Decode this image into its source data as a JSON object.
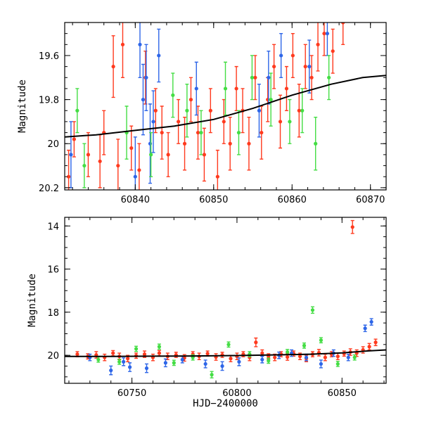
{
  "chart_data": [
    {
      "type": "scatter",
      "xlabel": "",
      "ylabel": "Magnitude",
      "xlim": [
        60831,
        60872
      ],
      "ylim": [
        20.21,
        19.45
      ],
      "y_inverted": true,
      "x_ticks": [
        60840,
        60850,
        60860,
        60870
      ],
      "x_tick_labels": [
        "60840",
        "60850",
        "60860",
        "60870"
      ],
      "y_ticks": [
        19.6,
        19.8,
        20,
        20.2
      ],
      "y_tick_labels": [
        "19.6",
        "19.8",
        "20",
        "20.2"
      ],
      "grid": false,
      "trend_line": {
        "color": "#000000",
        "x": [
          60831,
          60835,
          60840,
          60845,
          60850,
          60855,
          60860,
          60865,
          60869,
          60872
        ],
        "y": [
          19.97,
          19.96,
          19.94,
          19.92,
          19.89,
          19.84,
          19.78,
          19.73,
          19.7,
          19.69
        ]
      },
      "series": [
        {
          "color": "#ff3a1e",
          "x": [
            60831.5,
            60832.2,
            60834.0,
            60835.5,
            60836.0,
            60837.2,
            60837.8,
            60838.4,
            60839.5,
            60840.5,
            60841.3,
            60842.6,
            60843.4,
            60844.2,
            60845.5,
            60846.3,
            60847.1,
            60848.0,
            60848.8,
            60849.6,
            60850.5,
            60851.3,
            60852.1,
            60852.9,
            60853.7,
            60854.5,
            60855.3,
            60856.1,
            60856.9,
            60857.7,
            60858.5,
            60859.3,
            60860.1,
            60860.9,
            60861.7,
            60862.5,
            60863.3,
            60864.1,
            60865.2,
            60866.5
          ],
          "y": [
            20.15,
            19.98,
            20.05,
            20.08,
            19.95,
            19.65,
            20.1,
            19.55,
            20.02,
            20.12,
            19.7,
            19.85,
            19.95,
            20.05,
            19.9,
            20.0,
            19.8,
            19.95,
            20.05,
            19.85,
            20.15,
            19.9,
            20.0,
            19.75,
            19.85,
            20.0,
            19.7,
            19.95,
            19.8,
            19.65,
            19.9,
            19.75,
            19.6,
            19.85,
            19.65,
            19.7,
            19.55,
            19.5,
            19.58,
            19.45
          ],
          "errors": [
            0.12,
            0.08,
            0.1,
            0.12,
            0.1,
            0.14,
            0.12,
            0.15,
            0.1,
            0.12,
            0.12,
            0.1,
            0.12,
            0.1,
            0.1,
            0.12,
            0.1,
            0.12,
            0.12,
            0.1,
            0.12,
            0.1,
            0.12,
            0.1,
            0.1,
            0.12,
            0.1,
            0.12,
            0.1,
            0.1,
            0.12,
            0.1,
            0.1,
            0.12,
            0.1,
            0.1,
            0.12,
            0.1,
            0.1,
            0.1
          ]
        },
        {
          "color": "#2e66e8",
          "x": [
            60831.8,
            60840.0,
            60840.6,
            60841.0,
            60841.4,
            60841.9,
            60842.3,
            60843.0,
            60847.8,
            60855.8,
            60857.0,
            60858.6,
            60862.2,
            60864.5
          ],
          "y": [
            20.05,
            20.15,
            19.55,
            19.8,
            19.7,
            20.0,
            19.9,
            19.6,
            19.75,
            19.85,
            19.7,
            19.6,
            19.65,
            19.5
          ],
          "errors": [
            0.15,
            0.18,
            0.15,
            0.16,
            0.15,
            0.18,
            0.14,
            0.12,
            0.12,
            0.12,
            0.12,
            0.1,
            0.12,
            0.1
          ]
        },
        {
          "color": "#44dd44",
          "x": [
            60832.6,
            60833.5,
            60838.9,
            60842.0,
            60844.8,
            60846.6,
            60848.4,
            60851.5,
            60853.2,
            60854.9,
            60857.3,
            60859.7,
            60861.3,
            60863.0,
            60864.7
          ],
          "y": [
            19.85,
            20.1,
            19.95,
            20.05,
            19.78,
            19.85,
            19.95,
            19.75,
            19.95,
            19.7,
            19.8,
            19.9,
            19.85,
            20.0,
            19.7
          ],
          "errors": [
            0.1,
            0.1,
            0.12,
            0.1,
            0.1,
            0.12,
            0.1,
            0.12,
            0.1,
            0.1,
            0.12,
            0.1,
            0.1,
            0.12,
            0.1
          ]
        }
      ]
    },
    {
      "type": "scatter",
      "xlabel": "HJD−2400000",
      "ylabel": "Magnitude",
      "xlim": [
        60718,
        60871
      ],
      "ylim": [
        21.3,
        13.6
      ],
      "y_inverted": true,
      "x_ticks": [
        60750,
        60800,
        60850
      ],
      "x_tick_labels": [
        "60750",
        "60800",
        "60850"
      ],
      "y_ticks": [
        14,
        16,
        18,
        20
      ],
      "y_tick_labels": [
        "14",
        "16",
        "18",
        "20"
      ],
      "grid": false,
      "trend_line": {
        "color": "#000000",
        "x": [
          60718,
          60740,
          60760,
          60780,
          60800,
          60820,
          60835,
          60850,
          60862,
          60871
        ],
        "y": [
          20.05,
          20.05,
          20.04,
          20.03,
          20.01,
          19.98,
          19.95,
          19.89,
          19.8,
          19.75
        ]
      },
      "series": [
        {
          "color": "#ff3a1e",
          "x": [
            60724,
            60729,
            60733,
            60737,
            60741,
            60744,
            60748,
            60752,
            60756,
            60760,
            60763,
            60767,
            60771,
            60775,
            60779,
            60782,
            60786,
            60790,
            60793,
            60797,
            60800,
            60803,
            60806,
            60809,
            60812,
            60815,
            60818,
            60821,
            60824,
            60827,
            60830,
            60833,
            60836,
            60839,
            60842,
            60845,
            60848,
            60851,
            60854,
            60855,
            60857,
            60860,
            60863,
            60866
          ],
          "y": [
            19.95,
            20.05,
            19.98,
            20.1,
            19.9,
            20.05,
            20.15,
            20.02,
            19.95,
            20.1,
            19.9,
            20.05,
            19.98,
            20.12,
            19.95,
            20.05,
            19.92,
            20.08,
            19.98,
            20.15,
            20.05,
            19.95,
            20.1,
            19.4,
            19.9,
            20.05,
            20.1,
            19.95,
            20.08,
            19.92,
            20.05,
            20.15,
            19.95,
            19.88,
            20.1,
            19.95,
            20.05,
            19.92,
            19.85,
            14.05,
            19.9,
            19.75,
            19.6,
            19.4
          ],
          "errors": [
            0.12,
            0.12,
            0.15,
            0.15,
            0.12,
            0.15,
            0.15,
            0.12,
            0.15,
            0.15,
            0.12,
            0.15,
            0.12,
            0.15,
            0.12,
            0.15,
            0.12,
            0.15,
            0.12,
            0.15,
            0.15,
            0.12,
            0.15,
            0.2,
            0.15,
            0.12,
            0.15,
            0.12,
            0.15,
            0.12,
            0.15,
            0.15,
            0.12,
            0.15,
            0.15,
            0.12,
            0.15,
            0.12,
            0.15,
            0.3,
            0.15,
            0.15,
            0.15,
            0.15
          ]
        },
        {
          "color": "#2e66e8",
          "x": [
            60730,
            60740,
            60746,
            60749,
            60757,
            60766,
            60774,
            60785,
            60793,
            60801,
            60812,
            60820,
            60826,
            60833,
            60840,
            60846,
            60853,
            60861,
            60864
          ],
          "y": [
            20.1,
            20.7,
            20.3,
            20.55,
            20.6,
            20.35,
            20.2,
            20.4,
            20.5,
            20.3,
            20.2,
            20.0,
            19.9,
            20.1,
            20.4,
            19.9,
            20.1,
            18.75,
            18.45
          ],
          "errors": [
            0.15,
            0.2,
            0.18,
            0.2,
            0.2,
            0.18,
            0.15,
            0.18,
            0.2,
            0.18,
            0.15,
            0.15,
            0.15,
            0.15,
            0.18,
            0.15,
            0.15,
            0.15,
            0.15
          ]
        },
        {
          "color": "#44dd44",
          "x": [
            60734,
            60744,
            60752,
            60763,
            60770,
            60779,
            60788,
            60796,
            60806,
            60815,
            60824,
            60832,
            60836,
            60840,
            60848,
            60856
          ],
          "y": [
            20.2,
            20.3,
            19.7,
            19.6,
            20.35,
            20.1,
            20.9,
            19.5,
            19.95,
            20.25,
            19.85,
            19.55,
            17.9,
            19.3,
            20.4,
            20.1
          ],
          "errors": [
            0.12,
            0.12,
            0.12,
            0.12,
            0.12,
            0.12,
            0.15,
            0.12,
            0.12,
            0.12,
            0.12,
            0.12,
            0.15,
            0.12,
            0.12,
            0.12
          ]
        }
      ]
    }
  ]
}
